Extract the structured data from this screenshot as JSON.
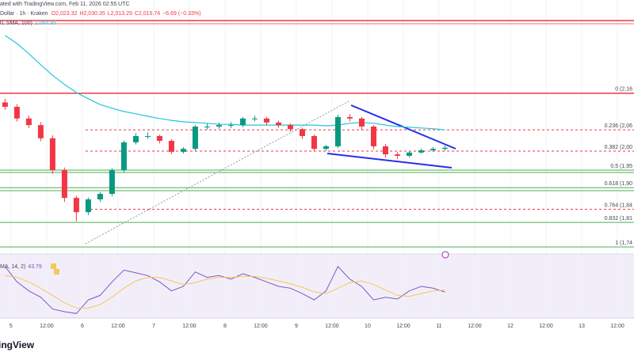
{
  "header": {
    "caption": "ated with TradingView.com, Feb 11, 2026 02:55 UTC",
    "symbol": "Dollar · 1h · Kraken",
    "open": "O2,023.32",
    "high": "H2,030.35",
    "low": "L2,013.29",
    "close": "C2,015.74",
    "change": "−6.69 (−0.33%)",
    "sma_label": "0, SMA, 100)",
    "sma_value": "2,064.85"
  },
  "chart_data": {
    "type": "candlestick",
    "x": [
      -2,
      2,
      6,
      10,
      14,
      18,
      22,
      26,
      30,
      34,
      38,
      42,
      46,
      50,
      54,
      58,
      62,
      66,
      70,
      74,
      78,
      82,
      86,
      90,
      94,
      98,
      102,
      106,
      110,
      114,
      118,
      122,
      126,
      130,
      134,
      138,
      142,
      146
    ],
    "open": [
      2140,
      2128,
      2096,
      2078,
      2042,
      1955,
      1879,
      1840,
      1875,
      1890,
      1955,
      2031,
      2048,
      2048,
      2035,
      2005,
      2013,
      2074,
      2074,
      2078,
      2078,
      2096,
      2096,
      2085,
      2078,
      2067,
      2048,
      2013,
      2020,
      2100,
      2096,
      2074,
      2020,
      1998,
      1994,
      2003,
      2009,
      2013
    ],
    "high": [
      2150,
      2135,
      2104,
      2086,
      2050,
      1962,
      1885,
      1880,
      1895,
      1960,
      2036,
      2056,
      2058,
      2052,
      2040,
      2018,
      2078,
      2082,
      2085,
      2086,
      2100,
      2104,
      2100,
      2090,
      2082,
      2070,
      2052,
      2024,
      2106,
      2108,
      2100,
      2078,
      2026,
      2004,
      2008,
      2014,
      2018,
      2022
    ],
    "low": [
      2120,
      2088,
      2070,
      2034,
      1945,
      1868,
      1815,
      1832,
      1868,
      1884,
      1948,
      2025,
      2040,
      2028,
      1998,
      2000,
      2008,
      2066,
      2068,
      2070,
      2072,
      2088,
      2078,
      2070,
      2060,
      2040,
      2006,
      2008,
      2015,
      2088,
      2066,
      2012,
      1990,
      1986,
      1990,
      2000,
      2005,
      2008
    ],
    "close": [
      2128,
      2096,
      2078,
      2042,
      1955,
      1879,
      1840,
      1875,
      1890,
      1955,
      2031,
      2048,
      2048,
      2035,
      2005,
      2013,
      2074,
      2074,
      2078,
      2078,
      2096,
      2096,
      2085,
      2078,
      2067,
      2048,
      2013,
      2020,
      2100,
      2096,
      2074,
      2020,
      1998,
      1994,
      2003,
      2009,
      2013,
      2016
    ],
    "up_color": "#089981",
    "down_color": "#f23645",
    "xlim": [
      -3.7,
      209.6
    ],
    "ylim": [
      1728,
      2355
    ],
    "xticks": [
      {
        "value": 0,
        "label": "5"
      },
      {
        "value": 12,
        "label": "12:00"
      },
      {
        "value": 24,
        "label": "6"
      },
      {
        "value": 36,
        "label": "12:00"
      },
      {
        "value": 48,
        "label": "7"
      },
      {
        "value": 60,
        "label": "12:00"
      },
      {
        "value": 72,
        "label": "8"
      },
      {
        "value": 84,
        "label": "12:00"
      },
      {
        "value": 96,
        "label": "9"
      },
      {
        "value": 108,
        "label": "12:00"
      },
      {
        "value": 120,
        "label": "10"
      },
      {
        "value": 132,
        "label": "12:00"
      },
      {
        "value": 144,
        "label": "11"
      },
      {
        "value": 156,
        "label": "12:00"
      },
      {
        "value": 168,
        "label": "12"
      },
      {
        "value": 180,
        "label": "12:00"
      },
      {
        "value": 192,
        "label": "13"
      },
      {
        "value": 204,
        "label": "12:00"
      }
    ],
    "grid": true,
    "sma": {
      "color": "#26c6da",
      "values": [
        2323,
        2301,
        2273,
        2243,
        2214,
        2189,
        2167,
        2150,
        2134,
        2124,
        2115,
        2109,
        2102,
        2096,
        2091,
        2087,
        2085,
        2083,
        2080,
        2080,
        2078,
        2078,
        2078,
        2078,
        2078,
        2078,
        2078,
        2076,
        2078,
        2083,
        2085,
        2083,
        2078,
        2074,
        2072,
        2070,
        2068,
        2065
      ]
    },
    "fib_levels": [
      {
        "label": "0 (2,16",
        "price": 2165,
        "color": "#f23645",
        "dashed": false
      },
      {
        "label": "0.236 (2,06",
        "price": 2065,
        "color": "#f23645",
        "dashed": true
      },
      {
        "label": "0.382 (2,00",
        "price": 2007,
        "color": "#f23645",
        "dashed": true
      },
      {
        "label": "0.5 (1,95",
        "price": 1955,
        "color": "#4caf50",
        "dashed": false
      },
      {
        "label": "0.618 (1,90",
        "price": 1907,
        "color": "#4caf50",
        "dashed": false
      },
      {
        "label": "0.764 (1,84",
        "price": 1848,
        "color": "#f23645",
        "dashed": true
      },
      {
        "label": "0.832 (1,81",
        "price": 1812,
        "color": "#4caf50",
        "dashed": false
      },
      {
        "label": "1 (1,74",
        "price": 1745,
        "color": "#4caf50",
        "dashed": false
      }
    ],
    "rsi": {
      "label": "MA, 14, 2)",
      "ylim": [
        15,
        85
      ],
      "series": [
        {
          "color": "#7e57c2",
          "values": [
            72,
            55,
            45,
            38,
            25,
            22,
            20,
            35,
            40,
            55,
            68,
            65,
            62,
            55,
            45,
            50,
            66,
            60,
            62,
            58,
            64,
            60,
            55,
            50,
            48,
            42,
            35,
            45,
            72,
            58,
            50,
            35,
            38,
            36,
            45,
            50,
            48,
            43.79
          ]
        },
        {
          "color": "#f6c75a",
          "values": [
            62,
            60,
            55,
            48,
            40,
            32,
            26,
            26,
            30,
            38,
            48,
            56,
            60,
            60,
            56,
            52,
            54,
            58,
            60,
            60,
            61,
            61,
            59,
            56,
            53,
            49,
            44,
            42,
            48,
            54,
            56,
            52,
            46,
            40,
            39,
            42,
            45,
            46
          ]
        }
      ]
    }
  },
  "logo": "ingView"
}
